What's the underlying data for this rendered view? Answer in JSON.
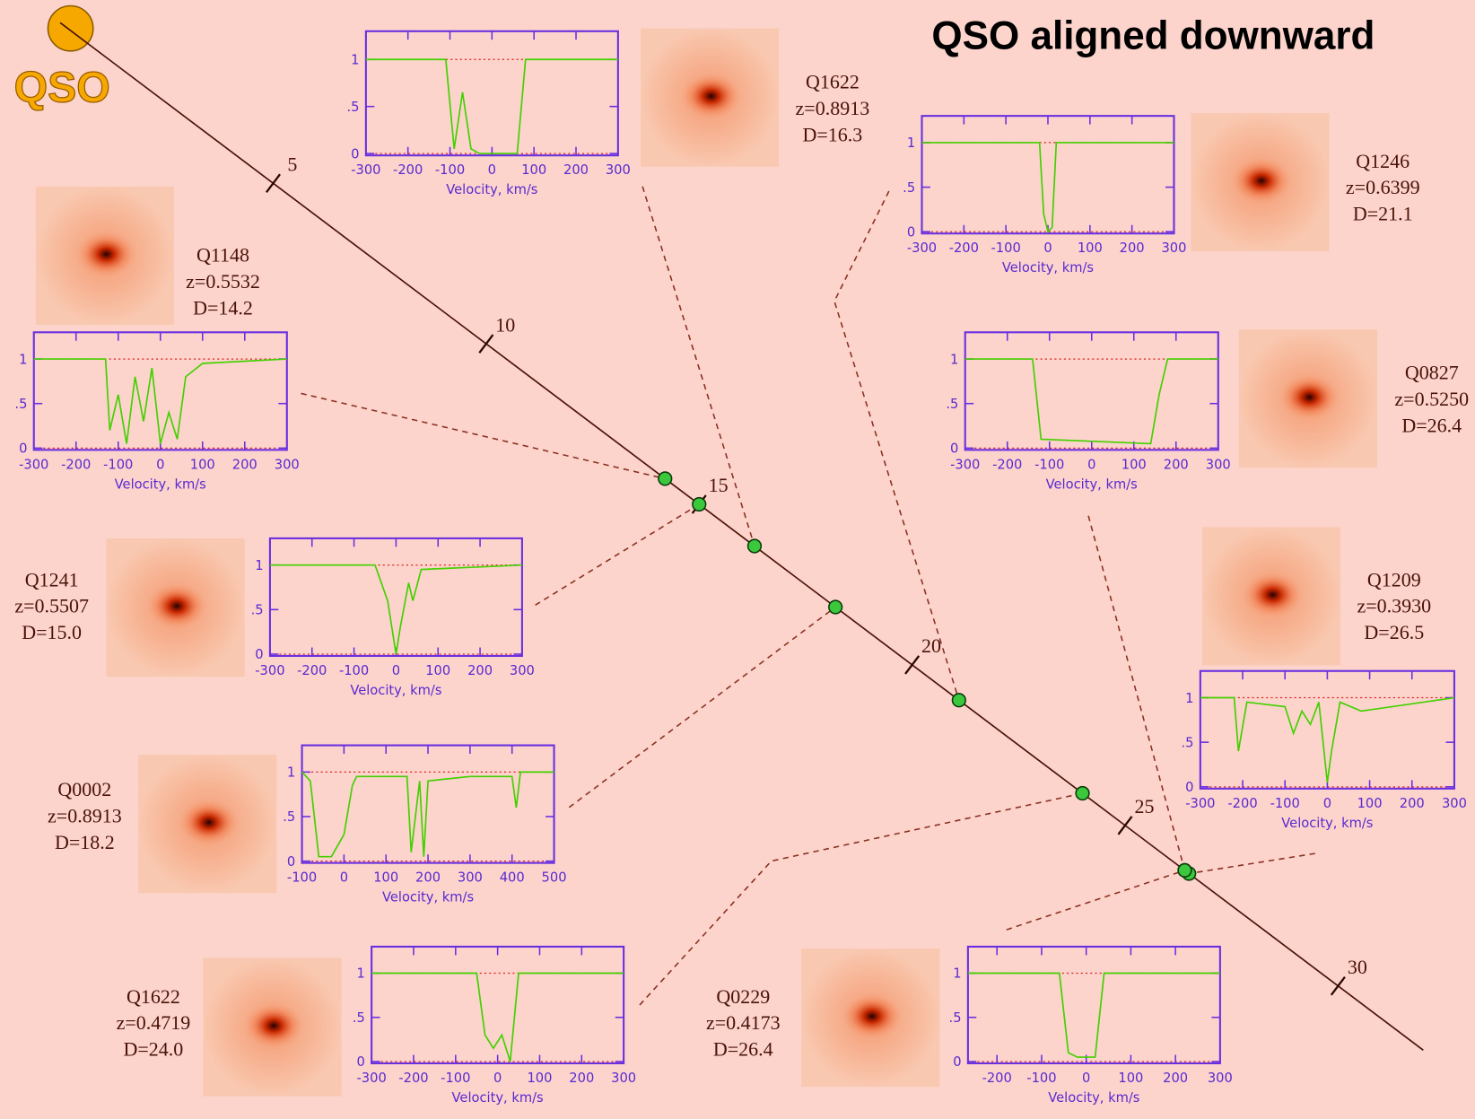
{
  "title": "QSO aligned downward",
  "qso_label": "QSO",
  "distance_axis": {
    "lim": [
      0,
      32
    ],
    "ticks": [
      5,
      10,
      15,
      20,
      25,
      30
    ]
  },
  "spectrum_reference_lines": [
    0,
    1
  ],
  "panels": [
    {
      "name": "Q1148",
      "z": "z=0.5532",
      "D": 14.2,
      "D_label": "D=14.2",
      "xlim": [
        -300,
        300
      ],
      "xticks": [
        -300,
        -200,
        -100,
        0,
        100,
        200,
        300
      ],
      "ylim": [
        -0.02,
        1.3
      ],
      "yticks": [
        0,
        {
          "value": 0.5,
          "label": ".5"
        },
        1
      ],
      "x_label": "Velocity, km/s",
      "velocity": [
        -300,
        -130,
        -120,
        -100,
        -80,
        -60,
        -40,
        -20,
        0,
        20,
        40,
        60,
        100,
        300
      ],
      "flux": [
        1,
        1,
        0.2,
        0.6,
        0.05,
        0.8,
        0.3,
        0.9,
        0.05,
        0.4,
        0.1,
        0.8,
        0.95,
        1
      ]
    },
    {
      "name": "Q1622",
      "z": "z=0.8913",
      "D": 16.3,
      "D_label": "D=16.3",
      "xlim": [
        -300,
        300
      ],
      "xticks": [
        -300,
        -200,
        -100,
        0,
        100,
        200,
        300
      ],
      "ylim": [
        -0.02,
        1.3
      ],
      "yticks": [
        0,
        {
          "value": 0.5,
          "label": ".5"
        },
        1
      ],
      "x_label": "Velocity, km/s",
      "velocity": [
        -300,
        -110,
        -90,
        -70,
        -50,
        -30,
        60,
        80,
        300
      ],
      "flux": [
        1,
        1,
        0.05,
        0.65,
        0.05,
        0,
        0,
        1,
        1
      ]
    },
    {
      "name": "Q1246",
      "z": "z=0.6399",
      "D": 21.1,
      "D_label": "D=21.1",
      "xlim": [
        -300,
        300
      ],
      "xticks": [
        -300,
        -200,
        -100,
        0,
        100,
        200,
        300
      ],
      "ylim": [
        -0.02,
        1.3
      ],
      "yticks": [
        0,
        {
          "value": 0.5,
          "label": ".5"
        },
        1
      ],
      "x_label": "Velocity, km/s",
      "velocity": [
        -300,
        -20,
        -10,
        0,
        10,
        20,
        300
      ],
      "flux": [
        1,
        1,
        0.2,
        0,
        0.05,
        1,
        1
      ]
    },
    {
      "name": "Q0827",
      "z": "z=0.5250",
      "D": 26.4,
      "D_label": "D=26.4",
      "xlim": [
        -300,
        300
      ],
      "xticks": [
        -300,
        -200,
        -100,
        0,
        100,
        200,
        300
      ],
      "ylim": [
        -0.02,
        1.3
      ],
      "yticks": [
        0,
        {
          "value": 0.5,
          "label": ".5"
        },
        1
      ],
      "x_label": "Velocity, km/s",
      "velocity": [
        -300,
        -140,
        -120,
        140,
        160,
        180,
        300
      ],
      "flux": [
        1,
        1,
        0.1,
        0.05,
        0.6,
        1,
        1
      ]
    },
    {
      "name": "Q1241",
      "z": "z=0.5507",
      "D": 15.0,
      "D_label": "D=15.0",
      "xlim": [
        -300,
        300
      ],
      "xticks": [
        -300,
        -200,
        -100,
        0,
        100,
        200,
        300
      ],
      "ylim": [
        -0.02,
        1.3
      ],
      "yticks": [
        0,
        {
          "value": 0.5,
          "label": ".5"
        },
        1
      ],
      "x_label": "Velocity, km/s",
      "velocity": [
        -300,
        -50,
        -20,
        0,
        10,
        30,
        40,
        60,
        300
      ],
      "flux": [
        1,
        1,
        0.6,
        0,
        0.3,
        0.8,
        0.6,
        0.95,
        1
      ]
    },
    {
      "name": "Q1209",
      "z": "z=0.3930",
      "D": 26.5,
      "D_label": "D=26.5",
      "xlim": [
        -300,
        300
      ],
      "xticks": [
        -300,
        -200,
        -100,
        0,
        100,
        200,
        300
      ],
      "ylim": [
        -0.02,
        1.3
      ],
      "yticks": [
        0,
        {
          "value": 0.5,
          "label": ".5"
        },
        1
      ],
      "x_label": "Velocity, km/s",
      "velocity": [
        -300,
        -220,
        -210,
        -190,
        -100,
        -80,
        -60,
        -40,
        -20,
        0,
        10,
        30,
        80,
        300
      ],
      "flux": [
        1,
        1,
        0.4,
        0.95,
        0.9,
        0.6,
        0.85,
        0.7,
        0.95,
        0.05,
        0.4,
        0.95,
        0.85,
        1
      ]
    },
    {
      "name": "Q0002",
      "z": "z=0.8913",
      "D": 18.2,
      "D_label": "D=18.2",
      "xlim": [
        -100,
        500
      ],
      "xticks": [
        -100,
        0,
        100,
        200,
        300,
        400,
        500
      ],
      "ylim": [
        -0.02,
        1.3
      ],
      "yticks": [
        0,
        {
          "value": 0.5,
          "label": ".5"
        },
        1
      ],
      "x_label": "Velocity, km/s",
      "velocity": [
        -100,
        -80,
        -60,
        -30,
        0,
        20,
        30,
        150,
        160,
        180,
        190,
        200,
        300,
        400,
        410,
        420,
        500
      ],
      "flux": [
        1,
        0.9,
        0.05,
        0.05,
        0.3,
        0.85,
        0.95,
        0.95,
        0.1,
        0.9,
        0.05,
        0.9,
        0.95,
        0.95,
        0.6,
        1,
        1
      ]
    },
    {
      "name": "Q1622",
      "z": "z=0.4719",
      "D": 24.0,
      "D_label": "D=24.0",
      "xlim": [
        -300,
        300
      ],
      "xticks": [
        -300,
        -200,
        -100,
        0,
        100,
        200,
        300
      ],
      "ylim": [
        -0.02,
        1.3
      ],
      "yticks": [
        0,
        {
          "value": 0.5,
          "label": ".5"
        },
        1
      ],
      "x_label": "Velocity, km/s",
      "velocity": [
        -300,
        -50,
        -30,
        -10,
        10,
        30,
        50,
        300
      ],
      "flux": [
        1,
        1,
        0.3,
        0.15,
        0.3,
        0,
        1,
        1
      ]
    },
    {
      "name": "Q0229",
      "z": "z=0.4173",
      "D": 26.4,
      "D_label": "D=26.4",
      "xlim": [
        -265,
        300
      ],
      "xticks": [
        -200,
        -100,
        0,
        100,
        200,
        300
      ],
      "ylim": [
        -0.02,
        1.3
      ],
      "yticks": [
        0,
        {
          "value": 0.5,
          "label": ".5"
        },
        1
      ],
      "x_label": "Velocity, km/s",
      "velocity": [
        -265,
        -60,
        -40,
        -20,
        20,
        40,
        300
      ],
      "flux": [
        1,
        1,
        0.1,
        0.05,
        0.05,
        1,
        1
      ]
    }
  ]
}
